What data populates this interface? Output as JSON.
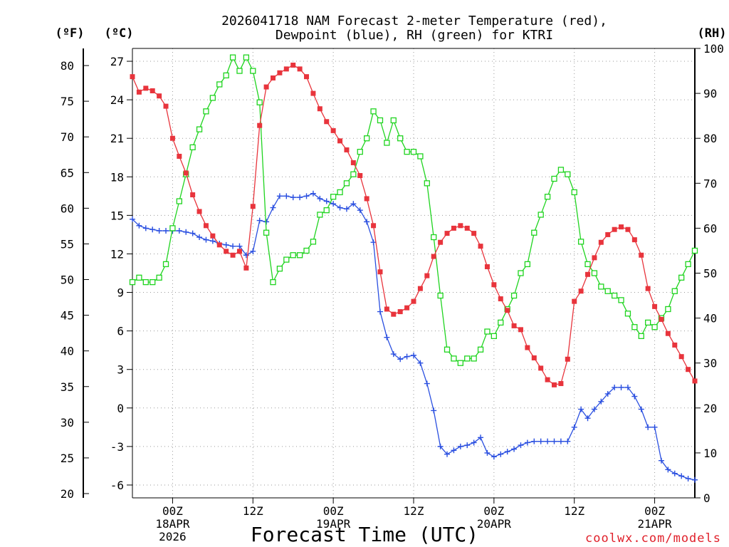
{
  "title_line1": "2026041718 NAM Forecast 2-meter Temperature (red),",
  "title_line2": "Dewpoint (blue), RH (green) for KTRI",
  "units": {
    "fahrenheit": "(ºF)",
    "celsius": "(ºC)",
    "rh": "(RH)"
  },
  "x_axis_label": "Forecast Time (UTC)",
  "credit": "coolwx.com/models",
  "colors": {
    "temperature": "#e8343c",
    "dewpoint": "#2a4fe0",
    "rh": "#1fd41f"
  },
  "chart_data": {
    "type": "line",
    "title": "2026041718 NAM Forecast 2-meter Temperature (red), Dewpoint (blue), RH (green) for KTRI",
    "xlabel": "Forecast Time (UTC)",
    "x_unit": "forecast hours from 2026-04-17 18Z",
    "x_range": [
      0,
      84
    ],
    "x_ticks": [
      {
        "hour": 6,
        "lines": [
          "00Z",
          "18APR",
          "2026"
        ]
      },
      {
        "hour": 18,
        "lines": [
          "12Z"
        ]
      },
      {
        "hour": 30,
        "lines": [
          "00Z",
          "19APR"
        ]
      },
      {
        "hour": 42,
        "lines": [
          "12Z"
        ]
      },
      {
        "hour": 54,
        "lines": [
          "00Z",
          "20APR"
        ]
      },
      {
        "hour": 66,
        "lines": [
          "12Z"
        ]
      },
      {
        "hour": 78,
        "lines": [
          "00Z",
          "21APR"
        ]
      }
    ],
    "axes": {
      "celsius": {
        "label": "(ºC)",
        "range": [
          -7,
          28
        ],
        "ticks": [
          "27",
          "24",
          "21",
          "18",
          "15",
          "12",
          "9",
          "6",
          "3",
          "0",
          "-3",
          "-6"
        ]
      },
      "fahrenheit": {
        "label": "(ºF)",
        "range": [
          19.4,
          82.4
        ],
        "ticks": [
          "80",
          "75",
          "70",
          "65",
          "60",
          "55",
          "50",
          "45",
          "40",
          "35",
          "30",
          "25",
          "20"
        ]
      },
      "rh": {
        "label": "(RH)",
        "range": [
          0,
          100
        ],
        "ticks": [
          "100",
          "90",
          "80",
          "70",
          "60",
          "50",
          "40",
          "30",
          "20",
          "10",
          "0"
        ]
      }
    },
    "series": [
      {
        "name": "Temperature",
        "axis": "celsius",
        "values": [
          25.8,
          24.6,
          24.9,
          24.7,
          24.3,
          23.5,
          21.0,
          19.6,
          18.3,
          16.6,
          15.3,
          14.2,
          13.4,
          12.7,
          12.2,
          11.9,
          12.2,
          10.9,
          15.7,
          22.0,
          25.0,
          25.7,
          26.1,
          26.4,
          26.7,
          26.4,
          25.8,
          24.5,
          23.3,
          22.3,
          21.6,
          20.8,
          20.1,
          19.1,
          18.1,
          16.3,
          14.2,
          10.6,
          7.7,
          7.3,
          7.5,
          7.8,
          8.3,
          9.3,
          10.3,
          11.8,
          12.9,
          13.6,
          14.0,
          14.2,
          14.0,
          13.6,
          12.6,
          11.0,
          9.6,
          8.5,
          7.6,
          6.4,
          6.1,
          4.7,
          3.9,
          3.1,
          2.2,
          1.8,
          1.9,
          3.8,
          8.3,
          9.1,
          10.4,
          11.7,
          12.9,
          13.5,
          13.9,
          14.1,
          13.9,
          13.1,
          11.9,
          9.3,
          7.9,
          6.9,
          5.8,
          4.9,
          4.0,
          3.0,
          2.1
        ]
      },
      {
        "name": "Dewpoint",
        "axis": "celsius",
        "values": [
          14.7,
          14.2,
          14.0,
          13.9,
          13.8,
          13.8,
          13.8,
          13.8,
          13.7,
          13.6,
          13.3,
          13.1,
          13.0,
          12.8,
          12.7,
          12.6,
          12.6,
          11.9,
          12.2,
          14.6,
          14.5,
          15.6,
          16.5,
          16.5,
          16.4,
          16.4,
          16.5,
          16.7,
          16.3,
          16.1,
          15.9,
          15.6,
          15.5,
          15.9,
          15.4,
          14.5,
          12.9,
          7.5,
          5.5,
          4.2,
          3.8,
          4.0,
          4.1,
          3.5,
          1.9,
          -0.2,
          -3.0,
          -3.6,
          -3.3,
          -3.0,
          -2.9,
          -2.7,
          -2.3,
          -3.5,
          -3.8,
          -3.6,
          -3.4,
          -3.2,
          -2.9,
          -2.7,
          -2.6,
          -2.6,
          -2.6,
          -2.6,
          -2.6,
          -2.6,
          -1.5,
          -0.1,
          -0.8,
          -0.1,
          0.5,
          1.1,
          1.6,
          1.6,
          1.6,
          0.9,
          -0.1,
          -1.5,
          -1.5,
          -4.1,
          -4.8,
          -5.1,
          -5.3,
          -5.5,
          -5.6
        ]
      },
      {
        "name": "RH",
        "axis": "rh",
        "values": [
          48,
          49,
          48,
          48,
          49,
          52,
          60,
          66,
          72,
          78,
          82,
          86,
          89,
          92,
          94,
          98,
          95,
          98,
          95,
          88,
          59,
          48,
          51,
          53,
          54,
          54,
          55,
          57,
          63,
          64,
          67,
          68,
          70,
          72,
          77,
          80,
          86,
          84,
          79,
          84,
          80,
          77,
          77,
          76,
          70,
          58,
          45,
          33,
          31,
          30,
          31,
          31,
          33,
          37,
          36,
          39,
          42,
          45,
          50,
          52,
          59,
          63,
          67,
          71,
          73,
          72,
          68,
          57,
          52,
          50,
          47,
          46,
          45,
          44,
          41,
          38,
          36,
          39,
          38,
          40,
          42,
          46,
          49,
          52,
          55
        ]
      }
    ]
  }
}
